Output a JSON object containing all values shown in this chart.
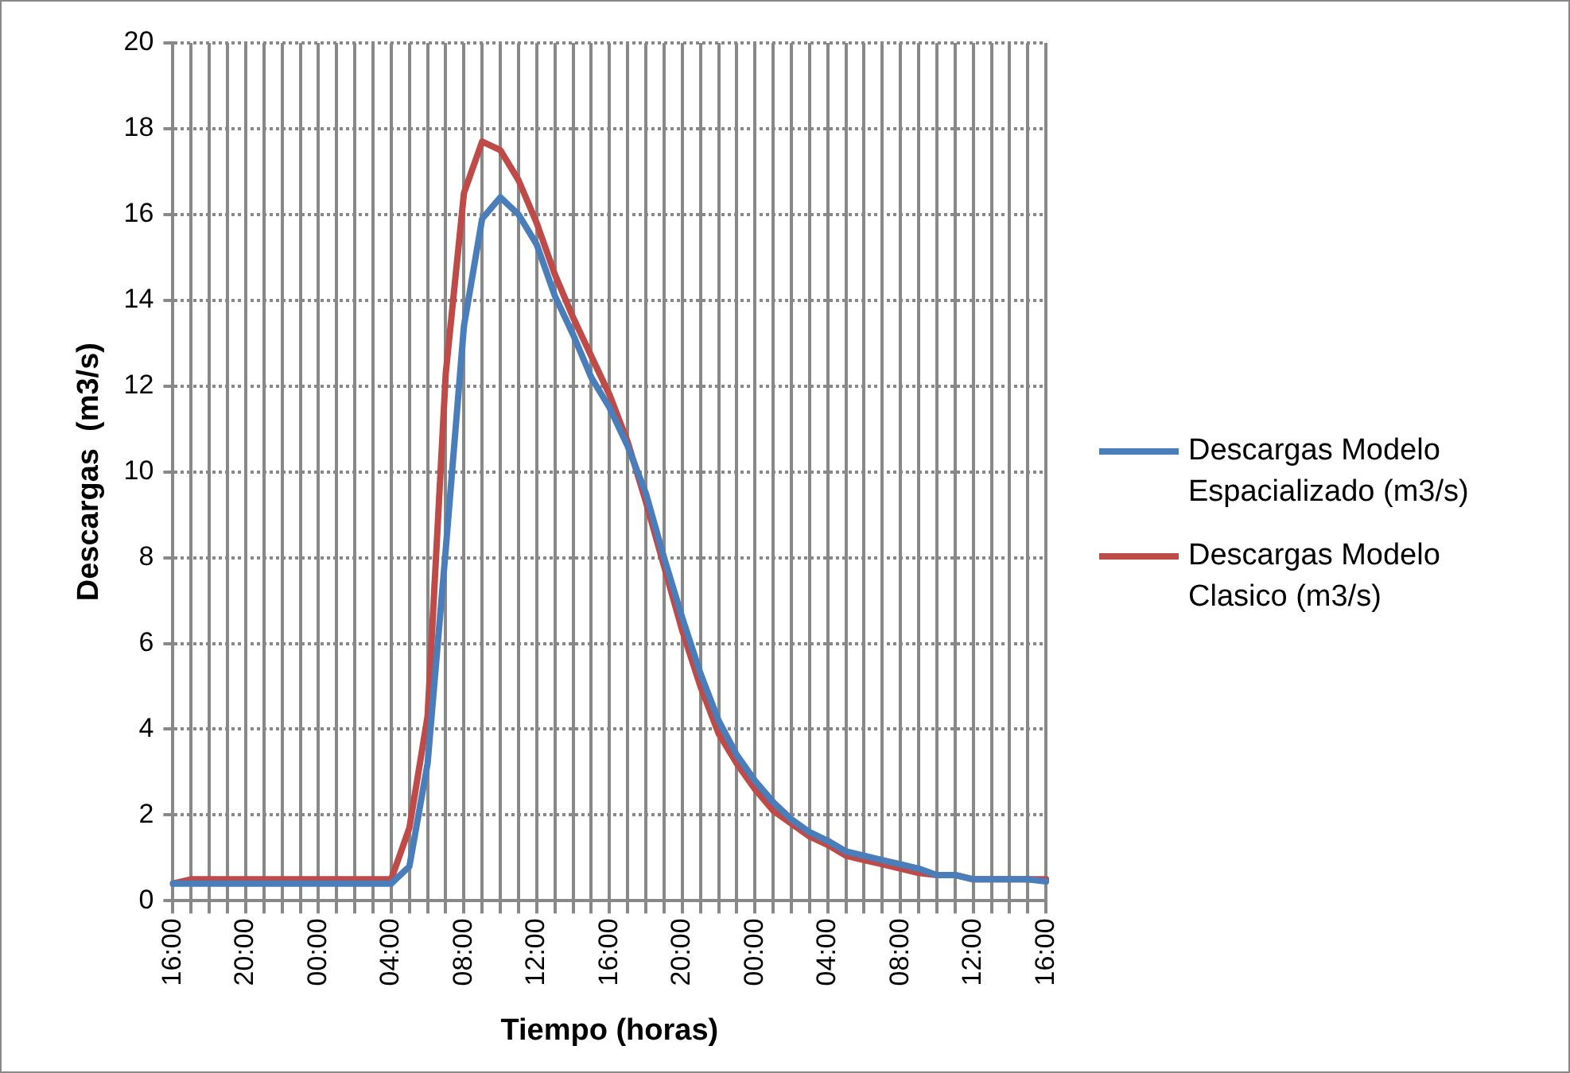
{
  "chart_data": {
    "type": "line",
    "xlabel": "Tiempo (horas)",
    "ylabel": "Descargas  (m3/s)",
    "categories": [
      "16:00",
      null,
      null,
      null,
      "20:00",
      null,
      null,
      null,
      "00:00",
      null,
      null,
      null,
      "04:00",
      null,
      null,
      null,
      "08:00",
      null,
      null,
      null,
      "12:00",
      null,
      null,
      null,
      "16:00",
      null,
      null,
      null,
      "20:00",
      null,
      null,
      null,
      "00:00",
      null,
      null,
      null,
      "04:00",
      null,
      null,
      null,
      "08:00",
      null,
      null,
      null,
      "12:00",
      null,
      null,
      null,
      "16:00"
    ],
    "series": [
      {
        "name": "Descargas Modelo Espacializado (m3/s)",
        "color": "#4a7ebb",
        "values": [
          0.4,
          0.4,
          0.4,
          0.4,
          0.4,
          0.4,
          0.4,
          0.4,
          0.4,
          0.4,
          0.4,
          0.4,
          0.4,
          0.8,
          3.2,
          8.2,
          13.4,
          15.9,
          16.4,
          16.0,
          15.3,
          14.1,
          13.2,
          12.2,
          11.5,
          10.6,
          9.5,
          8.0,
          6.6,
          5.3,
          4.2,
          3.4,
          2.8,
          2.3,
          1.9,
          1.6,
          1.4,
          1.15,
          1.05,
          0.95,
          0.85,
          0.75,
          0.6,
          0.6,
          0.5,
          0.5,
          0.5,
          0.5,
          0.45
        ]
      },
      {
        "name": "Descargas Modelo Clasico (m3/s)",
        "color": "#be4b48",
        "values": [
          0.4,
          0.5,
          0.5,
          0.5,
          0.5,
          0.5,
          0.5,
          0.5,
          0.5,
          0.5,
          0.5,
          0.5,
          0.5,
          1.7,
          4.3,
          12.3,
          16.5,
          17.7,
          17.5,
          16.8,
          15.8,
          14.6,
          13.6,
          12.7,
          11.8,
          10.7,
          9.3,
          7.8,
          6.3,
          5.0,
          3.9,
          3.2,
          2.6,
          2.1,
          1.8,
          1.5,
          1.3,
          1.05,
          0.95,
          0.85,
          0.75,
          0.65,
          0.6,
          0.6,
          0.5,
          0.5,
          0.5,
          0.5,
          0.5
        ]
      }
    ],
    "ylim": [
      0,
      20
    ],
    "yticks": [
      0,
      2,
      4,
      6,
      8,
      10,
      12,
      14,
      16,
      18,
      20
    ],
    "grid": true,
    "legend": "right",
    "marker": "none",
    "line_style": "solid"
  }
}
